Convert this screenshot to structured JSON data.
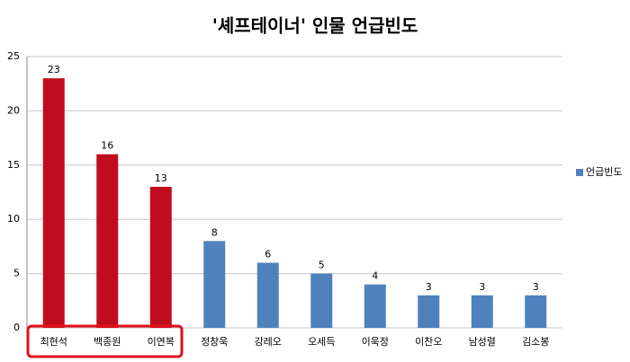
{
  "chart_data": {
    "type": "bar",
    "title": "'셰프테이너' 인물 언급빈도",
    "categories": [
      "최현석",
      "백종원",
      "이연복",
      "정창욱",
      "강레오",
      "오세득",
      "이욱정",
      "이찬오",
      "남성렬",
      "김소봉"
    ],
    "series": [
      {
        "name": "언급빈도",
        "color": "#4f81bd",
        "values": [
          23,
          16,
          13,
          8,
          6,
          5,
          4,
          3,
          3,
          3
        ],
        "point_colors": [
          "#c00d1e",
          "#c00d1e",
          "#c00d1e",
          "#4f81bd",
          "#4f81bd",
          "#4f81bd",
          "#4f81bd",
          "#4f81bd",
          "#4f81bd",
          "#4f81bd"
        ]
      }
    ],
    "ylim": [
      0,
      25
    ],
    "yticks": [
      0,
      5,
      10,
      15,
      20,
      25
    ],
    "grid": true,
    "legend": "right"
  }
}
